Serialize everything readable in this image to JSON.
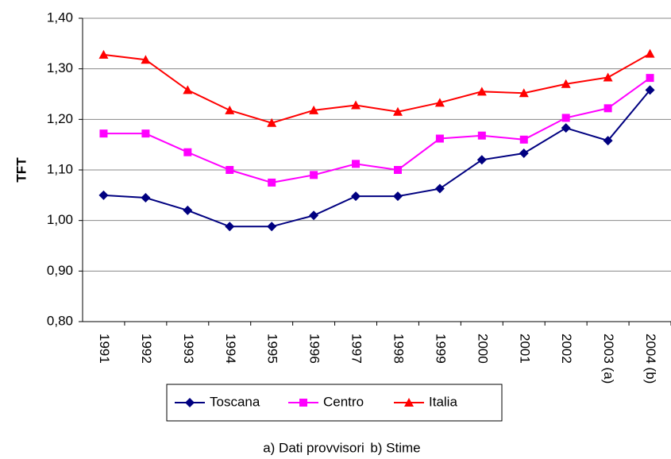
{
  "chart_data": {
    "type": "line",
    "y_label": "TFT",
    "categories": [
      "1991",
      "1992",
      "1993",
      "1994",
      "1995",
      "1996",
      "1997",
      "1998",
      "1999",
      "2000",
      "2001",
      "2002",
      "2003 (a)",
      "2004 (b)"
    ],
    "series": [
      {
        "name": "Toscana",
        "color": "#000080",
        "marker": "diamond",
        "values": [
          1.05,
          1.045,
          1.02,
          0.988,
          0.988,
          1.01,
          1.048,
          1.048,
          1.063,
          1.12,
          1.133,
          1.183,
          1.158,
          1.258
        ]
      },
      {
        "name": "Centro",
        "color": "#ff00ff",
        "marker": "square",
        "values": [
          1.172,
          1.172,
          1.135,
          1.1,
          1.075,
          1.09,
          1.112,
          1.1,
          1.162,
          1.168,
          1.16,
          1.203,
          1.222,
          1.282
        ]
      },
      {
        "name": "Italia",
        "color": "#ff0000",
        "marker": "triangle",
        "values": [
          1.328,
          1.318,
          1.258,
          1.218,
          1.193,
          1.218,
          1.228,
          1.215,
          1.233,
          1.255,
          1.252,
          1.27,
          1.283,
          1.33
        ]
      }
    ],
    "ylim": [
      0.8,
      1.4
    ],
    "yticks": [
      {
        "value": 0.8,
        "label": "0,80"
      },
      {
        "value": 0.9,
        "label": "0,90"
      },
      {
        "value": 1.0,
        "label": "1,00"
      },
      {
        "value": 1.1,
        "label": "1,10"
      },
      {
        "value": 1.2,
        "label": "1,20"
      },
      {
        "value": 1.3,
        "label": "1,30"
      },
      {
        "value": 1.4,
        "label": "1,40"
      }
    ],
    "grid": true,
    "legend": "bottom",
    "notes": [
      "a) Dati provvisori",
      "b) Stime"
    ]
  }
}
